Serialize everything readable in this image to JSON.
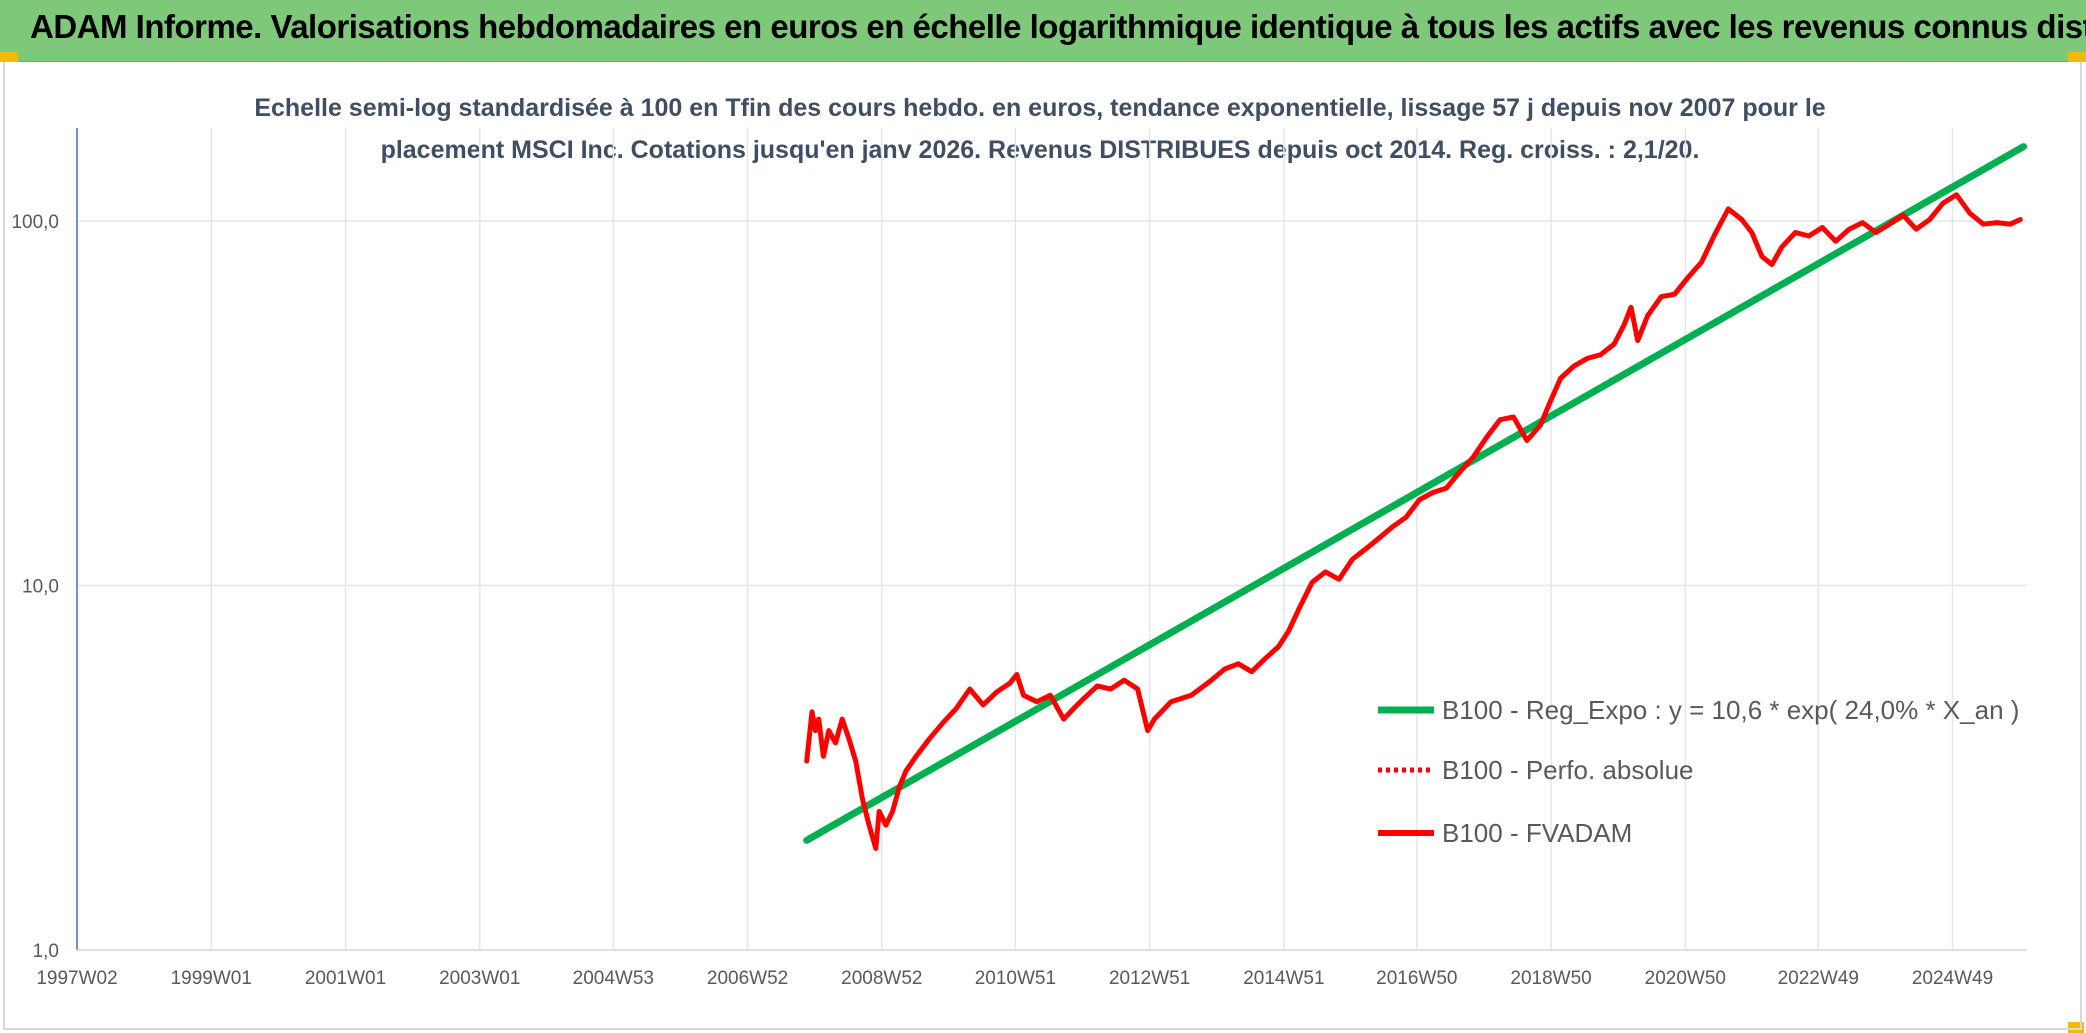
{
  "header": {
    "title": "ADAM Informe. Valorisations hebdomadaires en euros en échelle logarithmique identique à tous les actifs avec les revenus connus distribués"
  },
  "colors": {
    "header_bg": "#7ec87a",
    "corner_accent": "#f2b80a",
    "trend_line": "#00b050",
    "price_line": "#ff0000"
  },
  "chart_data": {
    "type": "line",
    "title": "",
    "subtitle_lines": [
      "Echelle semi-log standardisée à 100 en Tfin des cours hebdo. en euros, tendance exponentielle, lissage 57 j depuis nov 2007 pour le",
      "placement MSCI Inc. Cotations jusqu'en janv 2026. Revenus DISTRIBUES depuis oct 2014. Reg. croiss. : 2,1/20."
    ],
    "xlabel": "",
    "ylabel": "",
    "y_scale": "log",
    "ylim": [
      1,
      180
    ],
    "xlim": [
      1997.0,
      2026.05
    ],
    "y_ticks": [
      {
        "value": 1,
        "label": "1,0"
      },
      {
        "value": 10,
        "label": "10,0"
      },
      {
        "value": 100,
        "label": "100,0"
      }
    ],
    "x_ticks": [
      {
        "value": 1997.0,
        "label": "1997W02"
      },
      {
        "value": 1999.0,
        "label": "1999W01"
      },
      {
        "value": 2001.0,
        "label": "2001W01"
      },
      {
        "value": 2003.0,
        "label": "2003W01"
      },
      {
        "value": 2004.99,
        "label": "2004W53"
      },
      {
        "value": 2006.99,
        "label": "2006W52"
      },
      {
        "value": 2008.99,
        "label": "2008W52"
      },
      {
        "value": 2010.98,
        "label": "2010W51"
      },
      {
        "value": 2012.98,
        "label": "2012W51"
      },
      {
        "value": 2014.98,
        "label": "2014W51"
      },
      {
        "value": 2016.96,
        "label": "2016W50"
      },
      {
        "value": 2018.96,
        "label": "2018W50"
      },
      {
        "value": 2020.96,
        "label": "2020W50"
      },
      {
        "value": 2022.94,
        "label": "2022W49"
      },
      {
        "value": 2024.94,
        "label": "2024W49"
      }
    ],
    "grid": "vertical and horizontal",
    "legend_position": "right",
    "series": [
      {
        "name": "B100 - Reg_Expo : y = 10,6 * exp( 24,0% *  X_an )",
        "style": "solid-thick",
        "color": "#00b050",
        "x": [
          2007.87,
          2026.0
        ],
        "y": [
          2.0,
          160.0
        ]
      },
      {
        "name": "B100 - Perfo. absolue",
        "style": "dotted",
        "color": "#ff0000",
        "x": [],
        "y": []
      },
      {
        "name": "B100 - FVADAM",
        "style": "solid",
        "color": "#ff0000",
        "x": [
          2007.87,
          2007.95,
          2008.0,
          2008.05,
          2008.12,
          2008.2,
          2008.3,
          2008.4,
          2008.5,
          2008.6,
          2008.7,
          2008.8,
          2008.9,
          2008.95,
          2009.05,
          2009.15,
          2009.25,
          2009.35,
          2009.5,
          2009.7,
          2009.9,
          2010.1,
          2010.3,
          2010.5,
          2010.7,
          2010.9,
          2011.0,
          2011.1,
          2011.3,
          2011.5,
          2011.7,
          2011.85,
          2012.0,
          2012.2,
          2012.4,
          2012.6,
          2012.8,
          2012.95,
          2013.05,
          2013.3,
          2013.6,
          2013.9,
          2014.1,
          2014.3,
          2014.5,
          2014.7,
          2014.9,
          2015.05,
          2015.2,
          2015.4,
          2015.6,
          2015.8,
          2016.0,
          2016.2,
          2016.4,
          2016.6,
          2016.8,
          2017.0,
          2017.2,
          2017.4,
          2017.6,
          2017.8,
          2018.0,
          2018.2,
          2018.4,
          2018.6,
          2018.8,
          2018.95,
          2019.1,
          2019.3,
          2019.5,
          2019.7,
          2019.9,
          2020.05,
          2020.15,
          2020.25,
          2020.4,
          2020.6,
          2020.8,
          2021.0,
          2021.2,
          2021.4,
          2021.6,
          2021.8,
          2021.95,
          2022.1,
          2022.25,
          2022.4,
          2022.6,
          2022.8,
          2023.0,
          2023.2,
          2023.4,
          2023.6,
          2023.8,
          2024.0,
          2024.2,
          2024.4,
          2024.6,
          2024.8,
          2025.0,
          2025.2,
          2025.4,
          2025.6,
          2025.8,
          2025.95
        ],
        "y": [
          3.3,
          4.5,
          4.0,
          4.3,
          3.4,
          4.0,
          3.7,
          4.3,
          3.8,
          3.3,
          2.6,
          2.2,
          1.9,
          2.4,
          2.2,
          2.4,
          2.8,
          3.1,
          3.4,
          3.8,
          4.2,
          4.6,
          5.2,
          4.7,
          5.1,
          5.4,
          5.7,
          5.0,
          4.8,
          5.0,
          4.3,
          4.6,
          4.9,
          5.3,
          5.2,
          5.5,
          5.2,
          4.0,
          4.3,
          4.8,
          5.0,
          5.5,
          5.9,
          6.1,
          5.8,
          6.3,
          6.8,
          7.5,
          8.6,
          10.2,
          10.9,
          10.4,
          11.8,
          12.6,
          13.5,
          14.5,
          15.4,
          17.2,
          18.0,
          18.5,
          20.5,
          22.5,
          25.5,
          28.5,
          29.0,
          25.0,
          27.5,
          32.0,
          37.0,
          40.0,
          42.0,
          43.0,
          46.0,
          52.0,
          58.0,
          47.0,
          55.0,
          62.0,
          63.0,
          70.0,
          77.0,
          92.0,
          108.0,
          101.0,
          93.0,
          80.0,
          76.0,
          85.0,
          93.0,
          91.0,
          96.0,
          88.0,
          95.0,
          99.0,
          93.0,
          98.0,
          104.0,
          95.0,
          101.0,
          112.0,
          118.0,
          105.0,
          98.0,
          99.0,
          98.0,
          101.0
        ]
      }
    ]
  }
}
